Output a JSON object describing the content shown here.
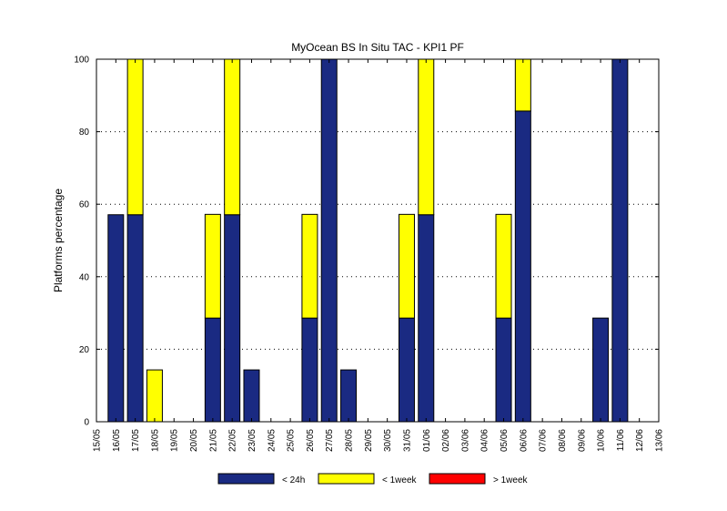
{
  "chart_data": {
    "type": "bar",
    "stacked": true,
    "title": "MyOcean  BS In Situ TAC - KPI1  PF",
    "xlabel": "",
    "ylabel": "Platforms percentage",
    "ylim": [
      0,
      100
    ],
    "yticks": [
      0,
      20,
      40,
      60,
      80,
      100
    ],
    "grid": "horizontal-dotted",
    "legend_position": "bottom",
    "categories": [
      "15/05",
      "16/05",
      "17/05",
      "18/05",
      "19/05",
      "20/05",
      "21/05",
      "22/05",
      "23/05",
      "24/05",
      "25/05",
      "26/05",
      "27/05",
      "28/05",
      "29/05",
      "30/05",
      "31/05",
      "01/06",
      "02/06",
      "03/06",
      "04/06",
      "05/06",
      "06/06",
      "07/06",
      "08/06",
      "09/06",
      "10/06",
      "11/06",
      "12/06",
      "13/06"
    ],
    "series": [
      {
        "name": "< 24h",
        "color": "#1a2a82",
        "values": [
          0,
          57.1,
          57.1,
          0,
          0,
          0,
          28.6,
          57.1,
          14.3,
          0,
          0,
          28.6,
          100,
          14.3,
          0,
          0,
          28.6,
          57.1,
          0,
          0,
          0,
          28.6,
          85.7,
          0,
          0,
          0,
          28.6,
          100,
          0,
          0
        ]
      },
      {
        "name": "< 1week",
        "color": "#ffff00",
        "values": [
          0,
          0,
          42.9,
          14.3,
          0,
          0,
          28.6,
          42.9,
          0,
          0,
          0,
          28.6,
          0,
          0,
          0,
          0,
          28.6,
          42.9,
          0,
          0,
          0,
          28.6,
          14.3,
          0,
          0,
          0,
          0,
          0,
          0,
          0
        ]
      },
      {
        "name": "> 1week",
        "color": "#ff0000",
        "values": [
          0,
          0,
          0,
          0,
          0,
          0,
          0,
          0,
          0,
          0,
          0,
          0,
          0,
          0,
          0,
          0,
          0,
          0,
          0,
          0,
          0,
          0,
          0,
          0,
          0,
          0,
          0,
          0,
          0,
          0
        ]
      }
    ]
  }
}
